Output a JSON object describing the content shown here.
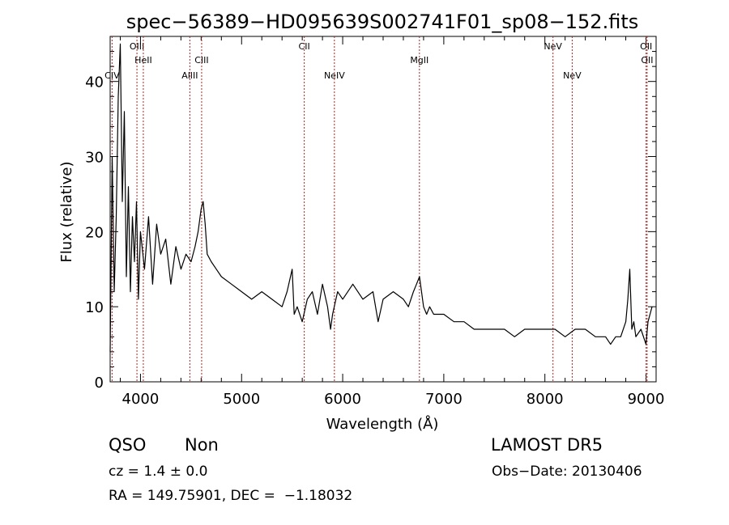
{
  "chart_data": {
    "type": "line",
    "title": "spec−56389−HD095639S002741F01_sp08−152.fits",
    "xlabel": "Wavelength (Å)",
    "ylabel": "Flux (relative)",
    "xlim": [
      3700,
      9100
    ],
    "ylim": [
      0,
      46
    ],
    "xticks": [
      4000,
      5000,
      6000,
      7000,
      8000,
      9000
    ],
    "yticks": [
      0,
      10,
      20,
      30,
      40
    ],
    "grid": false,
    "series": [
      {
        "x": [
          3700,
          3720,
          3740,
          3760,
          3780,
          3800,
          3820,
          3840,
          3860,
          3880,
          3900,
          3920,
          3940,
          3960,
          3980,
          4000,
          4040,
          4080,
          4120,
          4160,
          4200,
          4250,
          4300,
          4350,
          4400,
          4450,
          4500,
          4540,
          4570,
          4600,
          4620,
          4640,
          4660,
          4700,
          4750,
          4800,
          4900,
          5000,
          5100,
          5200,
          5300,
          5400,
          5450,
          5500,
          5520,
          5550,
          5600,
          5650,
          5700,
          5750,
          5800,
          5850,
          5880,
          5900,
          5950,
          6000,
          6100,
          6200,
          6300,
          6350,
          6400,
          6500,
          6600,
          6650,
          6700,
          6730,
          6760,
          6780,
          6800,
          6830,
          6860,
          6900,
          7000,
          7100,
          7200,
          7300,
          7400,
          7500,
          7600,
          7700,
          7800,
          7900,
          8000,
          8100,
          8200,
          8300,
          8400,
          8500,
          8600,
          8650,
          8700,
          8750,
          8800,
          8820,
          8840,
          8860,
          8880,
          8900,
          8950,
          9000,
          9020,
          9040,
          9060
        ],
        "y": [
          4,
          30,
          12,
          22,
          38,
          45,
          24,
          36,
          14,
          26,
          12,
          22,
          16,
          24,
          11,
          20,
          15,
          22,
          13,
          21,
          17,
          19,
          13,
          18,
          15,
          17,
          16,
          18,
          20,
          23,
          24,
          21,
          17,
          16,
          15,
          14,
          13,
          12,
          11,
          12,
          11,
          10,
          12,
          15,
          9,
          10,
          8,
          11,
          12,
          9,
          13,
          10,
          7,
          9,
          12,
          11,
          13,
          11,
          12,
          8,
          11,
          12,
          11,
          10,
          12,
          13,
          14,
          12,
          10,
          9,
          10,
          9,
          9,
          8,
          8,
          7,
          7,
          7,
          7,
          6,
          7,
          7,
          7,
          7,
          6,
          7,
          7,
          6,
          6,
          5,
          6,
          6,
          8,
          11,
          15,
          7,
          8,
          6,
          7,
          5,
          8,
          9,
          10
        ]
      }
    ],
    "lines": [
      {
        "label": "CIV",
        "x": 3719,
        "row": 2
      },
      {
        "label": "OIII",
        "x": 3965,
        "row": 0
      },
      {
        "label": "HeII",
        "x": 4028,
        "row": 1
      },
      {
        "label": "AlIII",
        "x": 4488,
        "row": 2
      },
      {
        "label": "CIII",
        "x": 4605,
        "row": 1
      },
      {
        "label": "CII",
        "x": 5620,
        "row": 0
      },
      {
        "label": "NeIV",
        "x": 5918,
        "row": 2
      },
      {
        "label": "MgII",
        "x": 6759,
        "row": 1
      },
      {
        "label": "NeV",
        "x": 8080,
        "row": 0
      },
      {
        "label": "NeV",
        "x": 8270,
        "row": 2
      },
      {
        "label": "OII",
        "x": 9001,
        "row": 0
      },
      {
        "label": "OII",
        "x": 9011,
        "row": 1
      }
    ]
  },
  "info": {
    "obj_class": "QSO",
    "obj_subclass": "Non",
    "survey": "LAMOST DR5",
    "cz": "cz = 1.4 ± 0.0",
    "obs_date": "Obs−Date: 20130406",
    "radec": "RA = 149.75901, DEC =  −1.18032"
  }
}
